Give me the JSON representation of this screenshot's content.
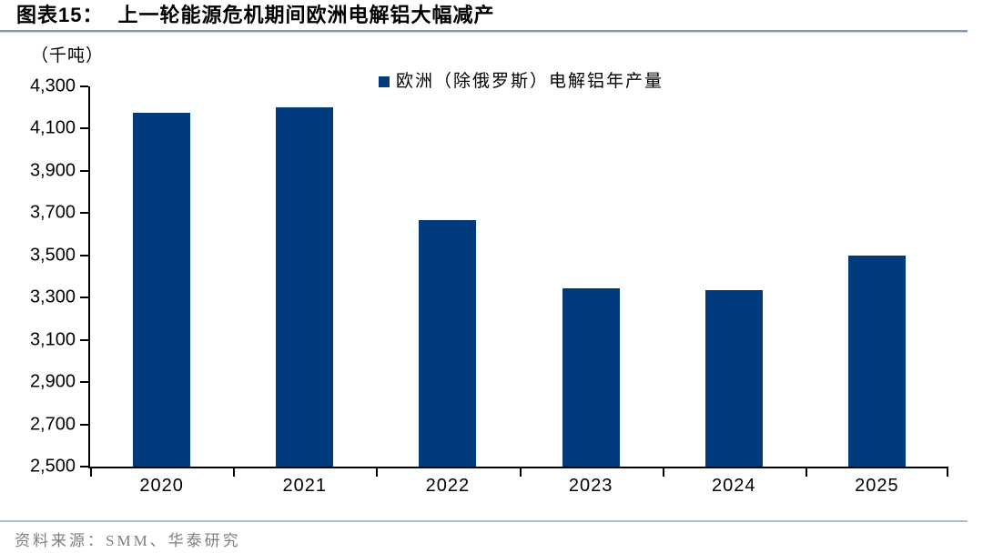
{
  "header": {
    "figure_label": "图表15：",
    "figure_title": "上一轮能源危机期间欧洲电解铝大幅减产"
  },
  "chart_data": {
    "type": "bar",
    "title": "上一轮能源危机期间欧洲电解铝大幅减产",
    "unit_label": "（千吨）",
    "legend": [
      {
        "label": "欧洲（除俄罗斯）电解铝年产量",
        "color": "#003a7c"
      }
    ],
    "legend_position": "top-center",
    "categories": [
      "2020",
      "2021",
      "2022",
      "2023",
      "2024",
      "2025"
    ],
    "values": [
      4175,
      4200,
      3665,
      3345,
      3335,
      3500
    ],
    "xlabel": "",
    "ylabel": "（千吨）",
    "ylim": [
      2500,
      4300
    ],
    "ytick_step": 200,
    "ytick_labels": [
      "2,500",
      "2,700",
      "2,900",
      "3,100",
      "3,300",
      "3,500",
      "3,700",
      "3,900",
      "4,100",
      "4,300"
    ],
    "grid": false,
    "bar_color": "#003a7c",
    "axis_color": "#000000",
    "bar_width_fraction": 0.4
  },
  "footer": {
    "source": "资料来源：SMM、华泰研究"
  }
}
